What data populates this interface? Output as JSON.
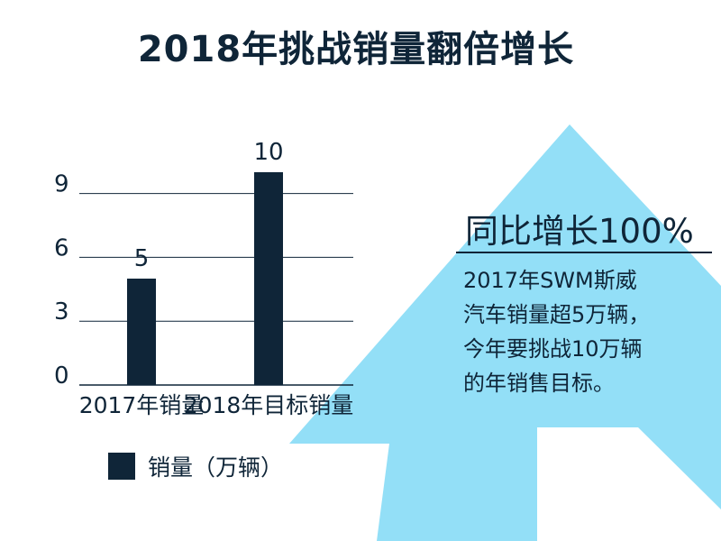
{
  "title": "2018年挑战销量翻倍增长",
  "side_panel": {
    "heading": "同比增长100%",
    "lines": [
      "2017年SWM斯威",
      "汽车销量超5万辆，",
      "今年要挑战10万辆",
      "的年销售目标。"
    ]
  },
  "legend": {
    "label": "销量（万辆）"
  },
  "colors": {
    "bar": "#0f2538",
    "arrow": "#93dff7",
    "text": "#0f2538",
    "grid": "#0f2538"
  },
  "chart_data": {
    "type": "bar",
    "categories": [
      "2017年销量",
      "2018年目标销量"
    ],
    "series": [
      {
        "name": "销量（万辆）",
        "values": [
          5,
          10
        ]
      }
    ],
    "data_labels": [
      "5",
      "10"
    ],
    "y_ticks": [
      0,
      3,
      6,
      9
    ],
    "ylim": [
      0,
      11
    ],
    "grid": true,
    "legend": "bottom-left"
  }
}
